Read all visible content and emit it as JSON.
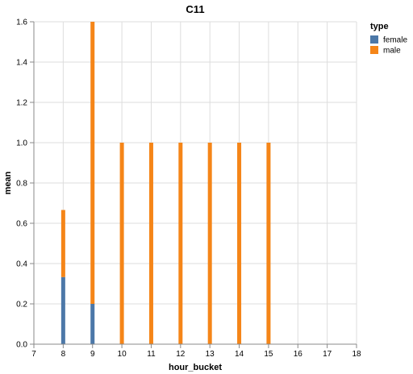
{
  "chart_data": {
    "type": "bar",
    "stacked": true,
    "title": "C11",
    "xlabel": "hour_bucket",
    "ylabel": "mean",
    "xlim": [
      7,
      18
    ],
    "ylim": [
      0,
      1.6
    ],
    "x_ticks": [
      "7",
      "8",
      "9",
      "10",
      "11",
      "12",
      "13",
      "14",
      "15",
      "16",
      "17",
      "18"
    ],
    "y_ticks": [
      "0.0",
      "0.2",
      "0.4",
      "0.6",
      "0.8",
      "1.0",
      "1.2",
      "1.4",
      "1.6"
    ],
    "x": [
      8,
      9,
      10,
      11,
      12,
      13,
      14,
      15
    ],
    "series": [
      {
        "name": "female",
        "color": "#4c78a8",
        "values": [
          0.333,
          0.2,
          0,
          0,
          0,
          0,
          0,
          0
        ]
      },
      {
        "name": "male",
        "color": "#f58518",
        "values": [
          0.333,
          1.4,
          1.0,
          1.0,
          1.0,
          1.0,
          1.0,
          1.0
        ]
      }
    ],
    "grid": true,
    "legend": {
      "title": "type",
      "position": "top-right",
      "entries": [
        "female",
        "male"
      ]
    }
  }
}
